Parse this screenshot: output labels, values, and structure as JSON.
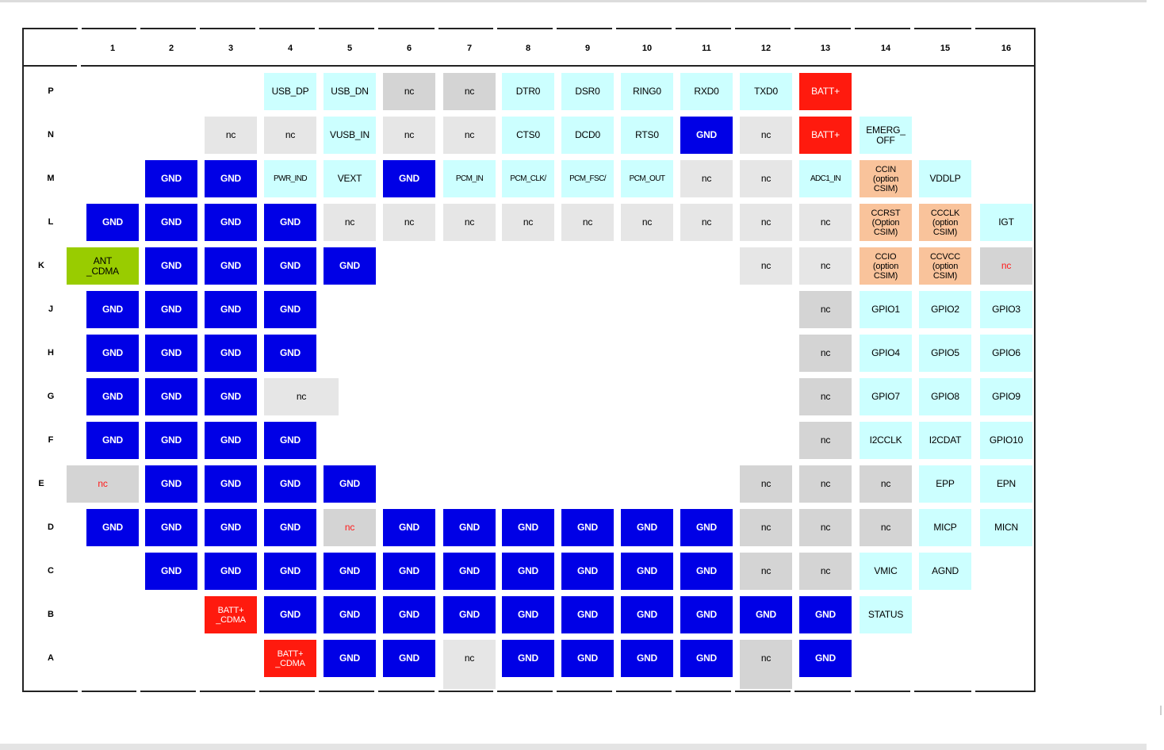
{
  "columns": [
    "1",
    "2",
    "3",
    "4",
    "5",
    "6",
    "7",
    "8",
    "9",
    "10",
    "11",
    "12",
    "13",
    "14",
    "15",
    "16"
  ],
  "colors": {
    "gnd": "#0000e6",
    "cyan": "#ccffff",
    "gray_dark": "#d4d4d4",
    "gray_light": "#e6e6e6",
    "red": "#ff1a0e",
    "green": "#99cc00",
    "orange": "#f9c39b",
    "nc_red": "#ff1a1a"
  },
  "rows": [
    {
      "label": "P",
      "cells": [
        {
          "col": 4,
          "text": "USB_DP",
          "style": "cyan"
        },
        {
          "col": 5,
          "text": "USB_DN",
          "style": "cyan"
        },
        {
          "col": 6,
          "text": "nc",
          "style": "gray_dark"
        },
        {
          "col": 7,
          "text": "nc",
          "style": "gray_dark"
        },
        {
          "col": 8,
          "text": "DTR0",
          "style": "cyan"
        },
        {
          "col": 9,
          "text": "DSR0",
          "style": "cyan"
        },
        {
          "col": 10,
          "text": "RING0",
          "style": "cyan"
        },
        {
          "col": 11,
          "text": "RXD0",
          "style": "cyan"
        },
        {
          "col": 12,
          "text": "TXD0",
          "style": "cyan"
        },
        {
          "col": 13,
          "text": "BATT+",
          "style": "red"
        }
      ]
    },
    {
      "label": "N",
      "cells": [
        {
          "col": 3,
          "text": "nc",
          "style": "gray_light"
        },
        {
          "col": 4,
          "text": "nc",
          "style": "gray_light"
        },
        {
          "col": 5,
          "text": "VUSB_IN",
          "style": "cyan"
        },
        {
          "col": 6,
          "text": "nc",
          "style": "gray_light"
        },
        {
          "col": 7,
          "text": "nc",
          "style": "gray_light"
        },
        {
          "col": 8,
          "text": "CTS0",
          "style": "cyan"
        },
        {
          "col": 9,
          "text": "DCD0",
          "style": "cyan"
        },
        {
          "col": 10,
          "text": "RTS0",
          "style": "cyan"
        },
        {
          "col": 11,
          "text": "GND",
          "style": "gnd"
        },
        {
          "col": 12,
          "text": "nc",
          "style": "gray_light"
        },
        {
          "col": 13,
          "text": "BATT+",
          "style": "red"
        },
        {
          "col": 14,
          "text": "EMERG_\nOFF",
          "style": "cyan"
        }
      ]
    },
    {
      "label": "M",
      "cells": [
        {
          "col": 2,
          "text": "GND",
          "style": "gnd"
        },
        {
          "col": 3,
          "text": "GND",
          "style": "gnd"
        },
        {
          "col": 4,
          "text": "PWR_IND",
          "style": "cyan",
          "size": "tiny"
        },
        {
          "col": 5,
          "text": "VEXT",
          "style": "cyan"
        },
        {
          "col": 6,
          "text": "GND",
          "style": "gnd"
        },
        {
          "col": 7,
          "text": "PCM_IN",
          "style": "cyan",
          "size": "tiny"
        },
        {
          "col": 8,
          "text": "PCM_CLK/",
          "style": "cyan",
          "size": "tiny"
        },
        {
          "col": 9,
          "text": "PCM_FSC/",
          "style": "cyan",
          "size": "tiny"
        },
        {
          "col": 10,
          "text": "PCM_OUT",
          "style": "cyan",
          "size": "tiny"
        },
        {
          "col": 11,
          "text": "nc",
          "style": "gray_light"
        },
        {
          "col": 12,
          "text": "nc",
          "style": "gray_light"
        },
        {
          "col": 13,
          "text": "ADC1_IN",
          "style": "cyan",
          "size": "tiny"
        },
        {
          "col": 14,
          "text": "CCIN\n(option\nCSIM)",
          "style": "orange",
          "size": "small"
        },
        {
          "col": 15,
          "text": "VDDLP",
          "style": "cyan"
        }
      ]
    },
    {
      "label": "L",
      "cells": [
        {
          "col": 1,
          "text": "GND",
          "style": "gnd"
        },
        {
          "col": 2,
          "text": "GND",
          "style": "gnd"
        },
        {
          "col": 3,
          "text": "GND",
          "style": "gnd"
        },
        {
          "col": 4,
          "text": "GND",
          "style": "gnd"
        },
        {
          "col": 5,
          "text": "nc",
          "style": "gray_light"
        },
        {
          "col": 6,
          "text": "nc",
          "style": "gray_light"
        },
        {
          "col": 7,
          "text": "nc",
          "style": "gray_light"
        },
        {
          "col": 8,
          "text": "nc",
          "style": "gray_light"
        },
        {
          "col": 9,
          "text": "nc",
          "style": "gray_light"
        },
        {
          "col": 10,
          "text": "nc",
          "style": "gray_light"
        },
        {
          "col": 11,
          "text": "nc",
          "style": "gray_light"
        },
        {
          "col": 12,
          "text": "nc",
          "style": "gray_light"
        },
        {
          "col": 13,
          "text": "nc",
          "style": "gray_light"
        },
        {
          "col": 14,
          "text": "CCRST\n(Option\nCSIM)",
          "style": "orange",
          "size": "small"
        },
        {
          "col": 15,
          "text": "CCCLK\n(option\nCSIM)",
          "style": "orange",
          "size": "small"
        },
        {
          "col": 16,
          "text": "IGT",
          "style": "cyan"
        }
      ]
    },
    {
      "label": "K",
      "cells": [
        {
          "col": 1,
          "text": "ANT\n_CDMA",
          "style": "green",
          "wide": true
        },
        {
          "col": 2,
          "text": "GND",
          "style": "gnd"
        },
        {
          "col": 3,
          "text": "GND",
          "style": "gnd"
        },
        {
          "col": 4,
          "text": "GND",
          "style": "gnd"
        },
        {
          "col": 5,
          "text": "GND",
          "style": "gnd"
        },
        {
          "col": 12,
          "text": "nc",
          "style": "gray_light"
        },
        {
          "col": 13,
          "text": "nc",
          "style": "gray_light"
        },
        {
          "col": 14,
          "text": "CCIO\n(option\nCSIM)",
          "style": "orange",
          "size": "small"
        },
        {
          "col": 15,
          "text": "CCVCC\n(option\nCSIM)",
          "style": "orange",
          "size": "small"
        },
        {
          "col": 16,
          "text": "nc",
          "style": "gray_dark",
          "red_text": true
        }
      ]
    },
    {
      "label": "J",
      "cells": [
        {
          "col": 1,
          "text": "GND",
          "style": "gnd"
        },
        {
          "col": 2,
          "text": "GND",
          "style": "gnd"
        },
        {
          "col": 3,
          "text": "GND",
          "style": "gnd"
        },
        {
          "col": 4,
          "text": "GND",
          "style": "gnd"
        },
        {
          "col": 13,
          "text": "nc",
          "style": "gray_dark"
        },
        {
          "col": 14,
          "text": "GPIO1",
          "style": "cyan"
        },
        {
          "col": 15,
          "text": "GPIO2",
          "style": "cyan"
        },
        {
          "col": 16,
          "text": "GPIO3",
          "style": "cyan"
        }
      ]
    },
    {
      "label": "H",
      "cells": [
        {
          "col": 1,
          "text": "GND",
          "style": "gnd"
        },
        {
          "col": 2,
          "text": "GND",
          "style": "gnd"
        },
        {
          "col": 3,
          "text": "GND",
          "style": "gnd"
        },
        {
          "col": 4,
          "text": "GND",
          "style": "gnd"
        },
        {
          "col": 13,
          "text": "nc",
          "style": "gray_dark"
        },
        {
          "col": 14,
          "text": "GPIO4",
          "style": "cyan"
        },
        {
          "col": 15,
          "text": "GPIO5",
          "style": "cyan"
        },
        {
          "col": 16,
          "text": "GPIO6",
          "style": "cyan"
        }
      ]
    },
    {
      "label": "G",
      "cells": [
        {
          "col": 1,
          "text": "GND",
          "style": "gnd"
        },
        {
          "col": 2,
          "text": "GND",
          "style": "gnd"
        },
        {
          "col": 3,
          "text": "GND",
          "style": "gnd"
        },
        {
          "col": 4,
          "text": "nc",
          "style": "gray_light",
          "wide": true
        },
        {
          "col": 13,
          "text": "nc",
          "style": "gray_dark"
        },
        {
          "col": 14,
          "text": "GPIO7",
          "style": "cyan"
        },
        {
          "col": 15,
          "text": "GPIO8",
          "style": "cyan"
        },
        {
          "col": 16,
          "text": "GPIO9",
          "style": "cyan"
        }
      ]
    },
    {
      "label": "F",
      "cells": [
        {
          "col": 1,
          "text": "GND",
          "style": "gnd"
        },
        {
          "col": 2,
          "text": "GND",
          "style": "gnd"
        },
        {
          "col": 3,
          "text": "GND",
          "style": "gnd"
        },
        {
          "col": 4,
          "text": "GND",
          "style": "gnd"
        },
        {
          "col": 13,
          "text": "nc",
          "style": "gray_dark"
        },
        {
          "col": 14,
          "text": "I2CCLK",
          "style": "cyan"
        },
        {
          "col": 15,
          "text": "I2CDAT",
          "style": "cyan"
        },
        {
          "col": 16,
          "text": "GPIO10",
          "style": "cyan"
        }
      ]
    },
    {
      "label": "E",
      "cells": [
        {
          "col": 1,
          "text": "nc",
          "style": "gray_dark",
          "red_text": true,
          "wide": true
        },
        {
          "col": 2,
          "text": "GND",
          "style": "gnd"
        },
        {
          "col": 3,
          "text": "GND",
          "style": "gnd"
        },
        {
          "col": 4,
          "text": "GND",
          "style": "gnd"
        },
        {
          "col": 5,
          "text": "GND",
          "style": "gnd"
        },
        {
          "col": 12,
          "text": "nc",
          "style": "gray_dark"
        },
        {
          "col": 13,
          "text": "nc",
          "style": "gray_dark"
        },
        {
          "col": 14,
          "text": "nc",
          "style": "gray_dark"
        },
        {
          "col": 15,
          "text": "EPP",
          "style": "cyan"
        },
        {
          "col": 16,
          "text": "EPN",
          "style": "cyan"
        }
      ]
    },
    {
      "label": "D",
      "cells": [
        {
          "col": 1,
          "text": "GND",
          "style": "gnd"
        },
        {
          "col": 2,
          "text": "GND",
          "style": "gnd"
        },
        {
          "col": 3,
          "text": "GND",
          "style": "gnd"
        },
        {
          "col": 4,
          "text": "GND",
          "style": "gnd"
        },
        {
          "col": 5,
          "text": "nc",
          "style": "gray_dark",
          "red_text": true
        },
        {
          "col": 6,
          "text": "GND",
          "style": "gnd"
        },
        {
          "col": 7,
          "text": "GND",
          "style": "gnd"
        },
        {
          "col": 8,
          "text": "GND",
          "style": "gnd"
        },
        {
          "col": 9,
          "text": "GND",
          "style": "gnd"
        },
        {
          "col": 10,
          "text": "GND",
          "style": "gnd"
        },
        {
          "col": 11,
          "text": "GND",
          "style": "gnd"
        },
        {
          "col": 12,
          "text": "nc",
          "style": "gray_dark"
        },
        {
          "col": 13,
          "text": "nc",
          "style": "gray_dark"
        },
        {
          "col": 14,
          "text": "nc",
          "style": "gray_dark"
        },
        {
          "col": 15,
          "text": "MICP",
          "style": "cyan"
        },
        {
          "col": 16,
          "text": "MICN",
          "style": "cyan"
        }
      ]
    },
    {
      "label": "C",
      "cells": [
        {
          "col": 2,
          "text": "GND",
          "style": "gnd"
        },
        {
          "col": 3,
          "text": "GND",
          "style": "gnd"
        },
        {
          "col": 4,
          "text": "GND",
          "style": "gnd"
        },
        {
          "col": 5,
          "text": "GND",
          "style": "gnd"
        },
        {
          "col": 6,
          "text": "GND",
          "style": "gnd"
        },
        {
          "col": 7,
          "text": "GND",
          "style": "gnd"
        },
        {
          "col": 8,
          "text": "GND",
          "style": "gnd"
        },
        {
          "col": 9,
          "text": "GND",
          "style": "gnd"
        },
        {
          "col": 10,
          "text": "GND",
          "style": "gnd"
        },
        {
          "col": 11,
          "text": "GND",
          "style": "gnd"
        },
        {
          "col": 12,
          "text": "nc",
          "style": "gray_dark"
        },
        {
          "col": 13,
          "text": "nc",
          "style": "gray_dark"
        },
        {
          "col": 14,
          "text": "VMIC",
          "style": "cyan"
        },
        {
          "col": 15,
          "text": "AGND",
          "style": "cyan"
        }
      ]
    },
    {
      "label": "B",
      "cells": [
        {
          "col": 3,
          "text": "BATT+\n_CDMA",
          "style": "red",
          "size": "small"
        },
        {
          "col": 4,
          "text": "GND",
          "style": "gnd"
        },
        {
          "col": 5,
          "text": "GND",
          "style": "gnd"
        },
        {
          "col": 6,
          "text": "GND",
          "style": "gnd"
        },
        {
          "col": 7,
          "text": "GND",
          "style": "gnd"
        },
        {
          "col": 8,
          "text": "GND",
          "style": "gnd"
        },
        {
          "col": 9,
          "text": "GND",
          "style": "gnd"
        },
        {
          "col": 10,
          "text": "GND",
          "style": "gnd"
        },
        {
          "col": 11,
          "text": "GND",
          "style": "gnd"
        },
        {
          "col": 12,
          "text": "GND",
          "style": "gnd"
        },
        {
          "col": 13,
          "text": "GND",
          "style": "gnd"
        },
        {
          "col": 14,
          "text": "STATUS",
          "style": "cyan"
        }
      ]
    },
    {
      "label": "A",
      "cells": [
        {
          "col": 4,
          "text": "BATT+\n_CDMA",
          "style": "red",
          "size": "small"
        },
        {
          "col": 5,
          "text": "GND",
          "style": "gnd"
        },
        {
          "col": 6,
          "text": "GND",
          "style": "gnd"
        },
        {
          "col": 7,
          "text": "nc",
          "style": "gray_light"
        },
        {
          "col": 8,
          "text": "GND",
          "style": "gnd"
        },
        {
          "col": 9,
          "text": "GND",
          "style": "gnd"
        },
        {
          "col": 10,
          "text": "GND",
          "style": "gnd"
        },
        {
          "col": 11,
          "text": "GND",
          "style": "gnd"
        },
        {
          "col": 12,
          "text": "nc",
          "style": "gray_dark"
        },
        {
          "col": 13,
          "text": "GND",
          "style": "gnd"
        }
      ]
    }
  ]
}
